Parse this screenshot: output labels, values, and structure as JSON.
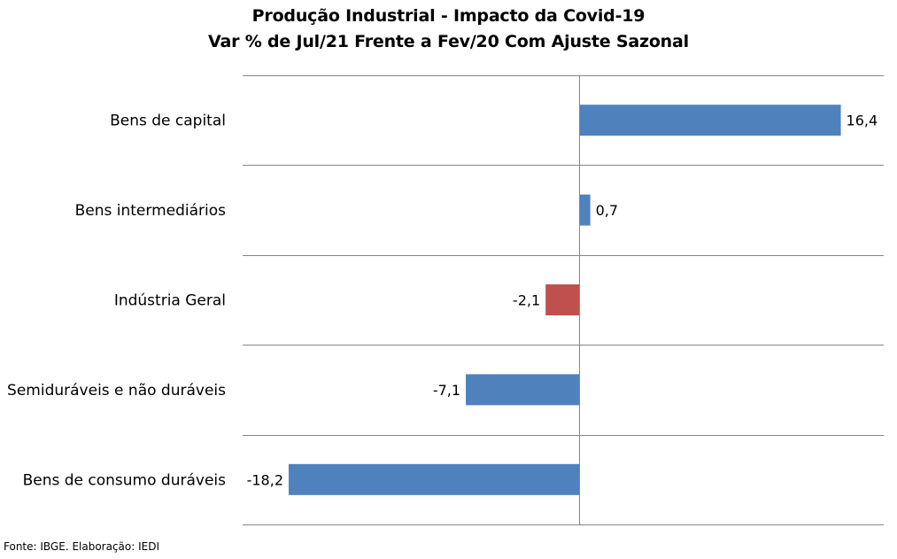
{
  "chart_data": {
    "type": "bar",
    "orientation": "horizontal",
    "title": "Produção Industrial - Impacto da Covid-19",
    "subtitle": "Var % de Jul/21 Frente a Fev/20 Com Ajuste Sazonal",
    "categories": [
      "Bens de capital",
      "Bens intermediários",
      "Indústria Geral",
      "Semiduráveis e não duráveis",
      "Bens de consumo duráveis"
    ],
    "values": [
      16.4,
      0.7,
      -2.1,
      -7.1,
      -18.2
    ],
    "data_labels": [
      "16,4",
      "0,7",
      "-2,1",
      "-7,1",
      "-18,2"
    ],
    "highlight_category": "Indústria Geral",
    "xlim": [
      -18.2,
      19
    ],
    "colors": {
      "default": "#4f81bd",
      "highlight": "#c0504d",
      "gridline": "#868686"
    },
    "grid": true,
    "legend": "none"
  },
  "source": "Fonte: IBGE. Elaboração: IEDI"
}
